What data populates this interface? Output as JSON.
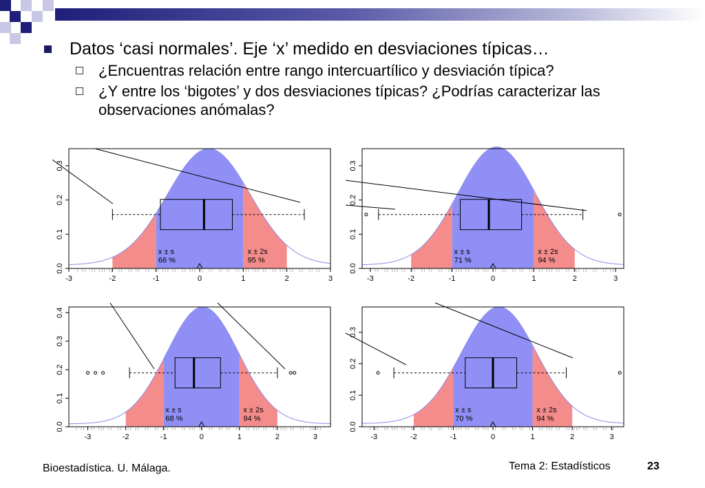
{
  "slide": {
    "bullet_main": "Datos ‘casi normales’. Eje ‘x’ medido en desviaciones típicas…",
    "sub_bullets": [
      "¿Encuentras relación entre rango intercuartílico y desviación típica?",
      "¿Y entre los ‘bigotes’ y dos desviaciones típicas? ¿Podrías caracterizar las observaciones anómalas?"
    ],
    "footer_left": "Bioestadística. U. Málaga.",
    "footer_topic": "Tema 2: Estadísticos",
    "page_number": "23"
  },
  "colors": {
    "inner_band": "#8f8ff5",
    "outer_band": "#f58c8c",
    "density_line": "#8b8be8",
    "rug": "#b4b4b4",
    "title_bar": "#1f1f7a"
  },
  "chart_data": [
    {
      "type": "area",
      "xlim": [
        -3,
        3
      ],
      "ylim": [
        0,
        0.35
      ],
      "x_ticks": [
        "-3",
        "-2",
        "-1",
        "0",
        "1",
        "2",
        "3"
      ],
      "y_ticks": [
        "0.0",
        "0.1",
        "0.2",
        "0.3"
      ],
      "band_labels": [
        "x ± s",
        "x ± 2s"
      ],
      "band_percents": [
        "66 %",
        "95 %"
      ],
      "density_peak_y": 0.34,
      "box": {
        "q1": -0.9,
        "median": 0.1,
        "q3": 0.75,
        "whisker_low": -2.0,
        "whisker_high": 2.4
      },
      "outliers": [],
      "mean_marker": 0.0
    },
    {
      "type": "area",
      "xlim": [
        -3.2,
        3.2
      ],
      "ylim": [
        0,
        0.35
      ],
      "x_ticks": [
        "-3",
        "-2",
        "-1",
        "0",
        "1",
        "2",
        "3"
      ],
      "y_ticks": [
        "0.0",
        "0.1",
        "0.2",
        "0.3"
      ],
      "band_labels": [
        "x ± s",
        "x ± 2s"
      ],
      "band_percents": [
        "71 %",
        "94 %"
      ],
      "density_peak_y": 0.345,
      "box": {
        "q1": -0.8,
        "median": -0.1,
        "q3": 0.7,
        "whisker_low": -2.8,
        "whisker_high": 2.2
      },
      "outliers": [
        -3.1,
        3.1
      ],
      "mean_marker": 0.0
    },
    {
      "type": "area",
      "xlim": [
        -3.5,
        3.4
      ],
      "ylim": [
        0,
        0.42
      ],
      "x_ticks": [
        "-3",
        "-2",
        "-1",
        "0",
        "1",
        "2",
        "3"
      ],
      "y_ticks": [
        "0.0",
        "0.1",
        "0.2",
        "0.3",
        "0.4"
      ],
      "band_labels": [
        "x ± s",
        "x ± 2s"
      ],
      "band_percents": [
        "68 %",
        "94 %"
      ],
      "density_peak_y": 0.41,
      "box": {
        "q1": -0.7,
        "median": -0.2,
        "q3": 0.5,
        "whisker_low": -1.9,
        "whisker_high": 2.0
      },
      "outliers": [
        -3.0,
        -2.8,
        -2.6,
        2.35,
        2.45
      ],
      "mean_marker": 0.0
    },
    {
      "type": "area",
      "xlim": [
        -3.3,
        3.3
      ],
      "ylim": [
        0,
        0.38
      ],
      "x_ticks": [
        "-3",
        "-2",
        "-1",
        "0",
        "1",
        "2",
        "3"
      ],
      "y_ticks": [
        "0.0",
        "0.1",
        "0.2",
        "0.3"
      ],
      "band_labels": [
        "x ± s",
        "x ± 2s"
      ],
      "band_percents": [
        "70 %",
        "94 %"
      ],
      "density_peak_y": 0.37,
      "box": {
        "q1": -0.7,
        "median": 0.0,
        "q3": 0.6,
        "whisker_low": -2.5,
        "whisker_high": 1.85
      },
      "outliers": [
        -2.9,
        3.2
      ],
      "mean_marker": 0.0
    }
  ]
}
